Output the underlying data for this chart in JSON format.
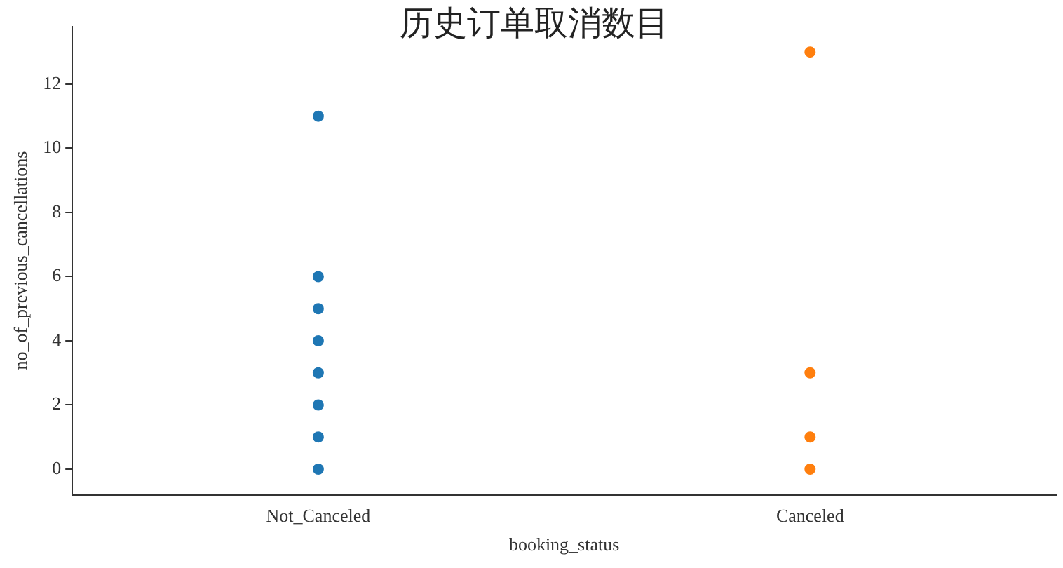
{
  "chart_data": {
    "type": "scatter",
    "title": "历史订单取消数目",
    "xlabel": "booking_status",
    "ylabel": "no_of_previous_cancellations",
    "categories": [
      "Not_Canceled",
      "Canceled"
    ],
    "series": [
      {
        "type": "scatter",
        "color": "#1f77b4",
        "x": [
          "Not_Canceled",
          "Not_Canceled",
          "Not_Canceled",
          "Not_Canceled",
          "Not_Canceled",
          "Not_Canceled",
          "Not_Canceled",
          "Not_Canceled"
        ],
        "values": [
          0,
          1,
          2,
          3,
          4,
          5,
          6,
          11
        ]
      },
      {
        "type": "scatter",
        "color": "#ff7f0e",
        "x": [
          "Canceled",
          "Canceled",
          "Canceled",
          "Canceled"
        ],
        "values": [
          0,
          1,
          3,
          13
        ]
      }
    ],
    "ylim": [
      -0.8,
      13.8
    ],
    "yticks": [
      0,
      2,
      4,
      6,
      8,
      10,
      12
    ],
    "grid": false,
    "legend": false,
    "marker": "circle"
  }
}
